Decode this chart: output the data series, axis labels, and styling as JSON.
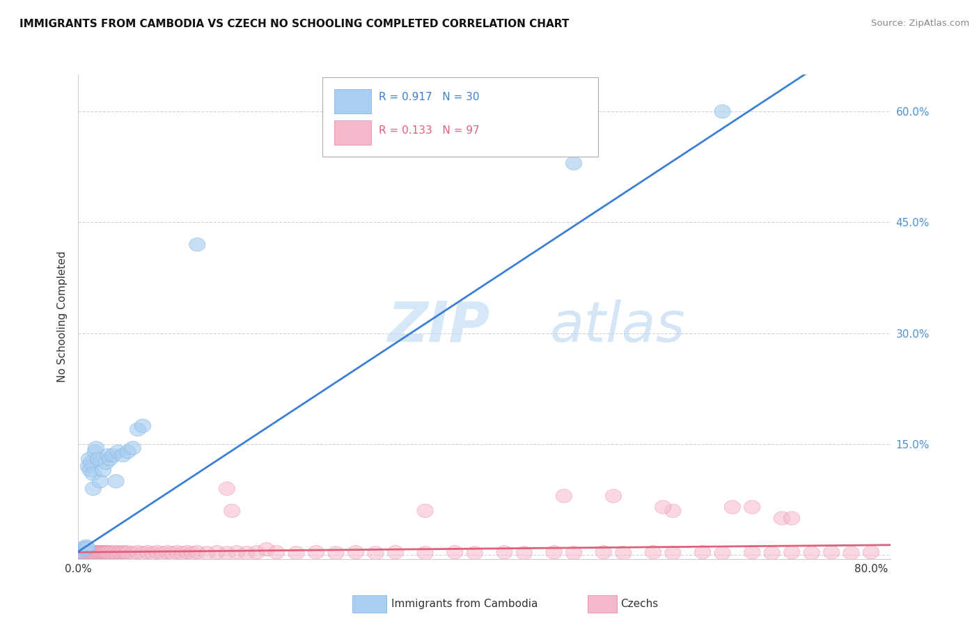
{
  "title": "IMMIGRANTS FROM CAMBODIA VS CZECH NO SCHOOLING COMPLETED CORRELATION CHART",
  "source": "Source: ZipAtlas.com",
  "ylabel": "No Schooling Completed",
  "xlabel": "",
  "xlim": [
    0.0,
    0.82
  ],
  "ylim": [
    -0.005,
    0.65
  ],
  "xtick_positions": [
    0.0,
    0.1,
    0.2,
    0.3,
    0.4,
    0.5,
    0.6,
    0.7,
    0.8
  ],
  "xtick_labels": [
    "0.0%",
    "",
    "",
    "",
    "",
    "",
    "",
    "",
    "80.0%"
  ],
  "ytick_positions": [
    0.0,
    0.15,
    0.3,
    0.45,
    0.6
  ],
  "ytick_labels_right": [
    "",
    "15.0%",
    "30.0%",
    "45.0%",
    "60.0%"
  ],
  "cambodia_color": "#a8cef0",
  "cambodia_edge_color": "#7aabdf",
  "cambodia_line_color": "#3a7fd4",
  "czech_color": "#f5b8cb",
  "czech_edge_color": "#e8809a",
  "czech_line_color": "#e0607a",
  "R_cambodia": 0.917,
  "N_cambodia": 30,
  "R_czech": 0.133,
  "N_czech": 97,
  "watermark": "ZIPatlas",
  "legend_cambodia": "Immigrants from Cambodia",
  "legend_czech": "Czechs",
  "background_color": "#ffffff",
  "grid_color": "#cccccc",
  "cambodia_x": [
    0.003,
    0.005,
    0.007,
    0.008,
    0.009,
    0.01,
    0.011,
    0.012,
    0.013,
    0.015,
    0.015,
    0.017,
    0.018,
    0.02,
    0.022,
    0.025,
    0.028,
    0.03,
    0.032,
    0.035,
    0.038,
    0.04,
    0.045,
    0.05,
    0.055,
    0.06,
    0.065,
    0.12,
    0.5,
    0.65
  ],
  "cambodia_y": [
    0.005,
    0.01,
    0.008,
    0.012,
    0.01,
    0.12,
    0.13,
    0.115,
    0.125,
    0.11,
    0.09,
    0.14,
    0.145,
    0.13,
    0.1,
    0.115,
    0.125,
    0.135,
    0.13,
    0.135,
    0.1,
    0.14,
    0.135,
    0.14,
    0.145,
    0.17,
    0.175,
    0.42,
    0.53,
    0.6
  ],
  "czech_x": [
    0.003,
    0.004,
    0.005,
    0.006,
    0.007,
    0.008,
    0.009,
    0.01,
    0.011,
    0.012,
    0.013,
    0.014,
    0.015,
    0.016,
    0.017,
    0.018,
    0.019,
    0.02,
    0.021,
    0.022,
    0.023,
    0.024,
    0.025,
    0.026,
    0.027,
    0.028,
    0.029,
    0.03,
    0.032,
    0.034,
    0.036,
    0.038,
    0.04,
    0.042,
    0.044,
    0.046,
    0.048,
    0.05,
    0.055,
    0.06,
    0.065,
    0.07,
    0.075,
    0.08,
    0.085,
    0.09,
    0.095,
    0.1,
    0.105,
    0.11,
    0.115,
    0.12,
    0.13,
    0.14,
    0.15,
    0.16,
    0.17,
    0.18,
    0.19,
    0.2,
    0.22,
    0.24,
    0.26,
    0.28,
    0.3,
    0.32,
    0.35,
    0.38,
    0.4,
    0.43,
    0.45,
    0.48,
    0.5,
    0.53,
    0.55,
    0.58,
    0.6,
    0.63,
    0.65,
    0.68,
    0.7,
    0.72,
    0.74,
    0.76,
    0.78,
    0.8,
    0.155,
    0.35,
    0.49,
    0.6,
    0.71,
    0.54,
    0.66,
    0.59,
    0.68,
    0.72,
    0.15
  ],
  "czech_y": [
    0.005,
    0.003,
    0.004,
    0.003,
    0.004,
    0.003,
    0.004,
    0.005,
    0.003,
    0.004,
    0.003,
    0.004,
    0.003,
    0.004,
    0.003,
    0.004,
    0.003,
    0.004,
    0.003,
    0.004,
    0.003,
    0.004,
    0.003,
    0.004,
    0.003,
    0.004,
    0.003,
    0.004,
    0.003,
    0.004,
    0.003,
    0.004,
    0.003,
    0.004,
    0.003,
    0.004,
    0.003,
    0.004,
    0.003,
    0.004,
    0.003,
    0.004,
    0.003,
    0.004,
    0.003,
    0.004,
    0.003,
    0.004,
    0.003,
    0.004,
    0.003,
    0.004,
    0.003,
    0.004,
    0.003,
    0.004,
    0.003,
    0.004,
    0.008,
    0.004,
    0.003,
    0.004,
    0.003,
    0.004,
    0.003,
    0.004,
    0.003,
    0.004,
    0.003,
    0.004,
    0.003,
    0.004,
    0.003,
    0.004,
    0.003,
    0.004,
    0.003,
    0.004,
    0.003,
    0.004,
    0.003,
    0.004,
    0.003,
    0.004,
    0.003,
    0.004,
    0.06,
    0.06,
    0.08,
    0.06,
    0.05,
    0.08,
    0.065,
    0.065,
    0.065,
    0.05,
    0.09
  ]
}
